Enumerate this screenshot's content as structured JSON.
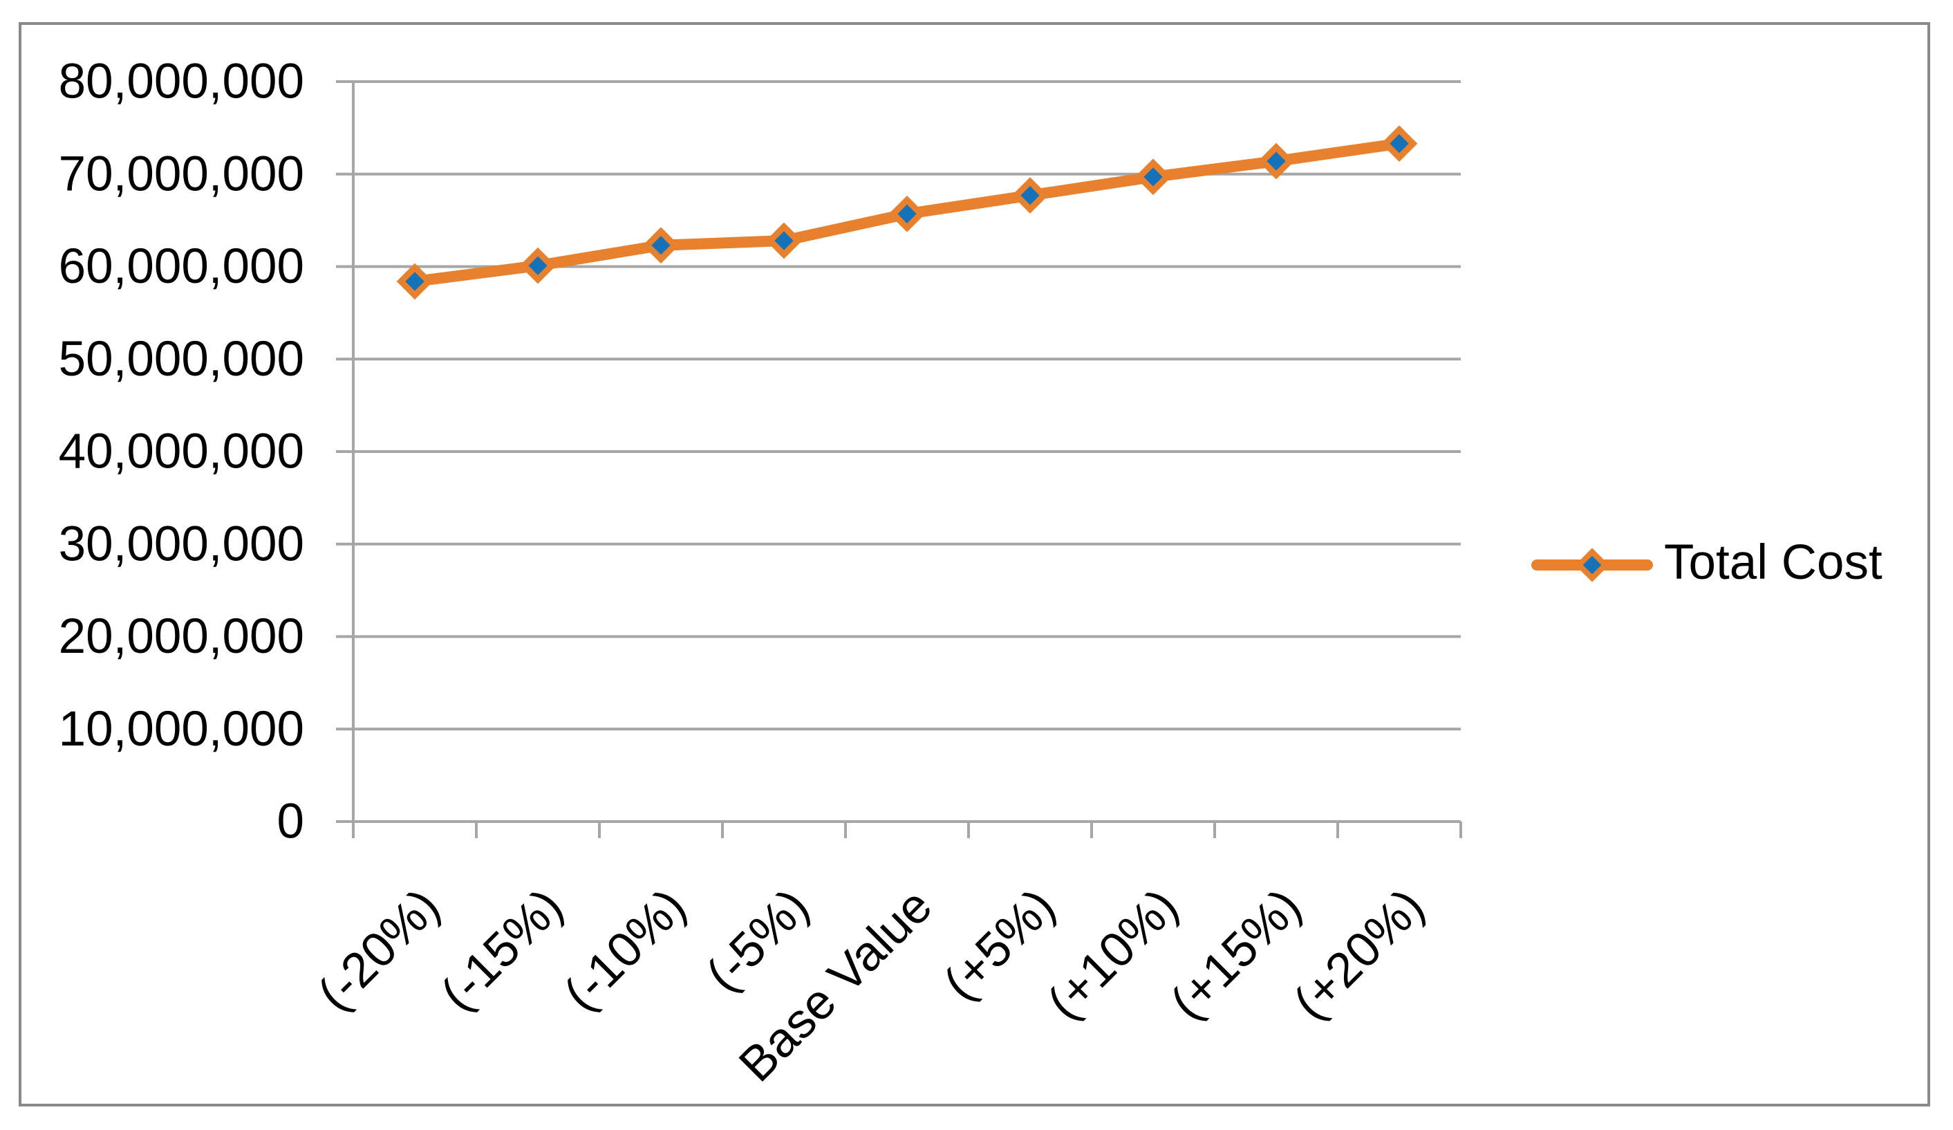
{
  "chart_data": {
    "type": "line",
    "title": "",
    "categories": [
      "(-20%)",
      "(-15%)",
      "(-10%)",
      "(-5%)",
      "Base Value",
      "(+5%)",
      "(+10%)",
      "(+15%)",
      "(+20%)"
    ],
    "series": [
      {
        "name": "Total Cost",
        "values": [
          58400000,
          60100000,
          62300000,
          62800000,
          65700000,
          67700000,
          69700000,
          71400000,
          73300000
        ],
        "line_color": "#E8812D",
        "marker": "diamond",
        "marker_fill": "#1572B9",
        "marker_border_color": "#E8812D"
      }
    ],
    "xlabel": "",
    "ylabel": "",
    "ylim": [
      0,
      80000000
    ],
    "ytick_step": 10000000,
    "ytick_labels_top_to_bottom": [
      "80,000,000",
      "70,000,000",
      "60,000,000",
      "50,000,000",
      "40,000,000",
      "30,000,000",
      "20,000,000",
      "10,000,000",
      "0"
    ],
    "grid": true,
    "x_label_rotation_deg": -45,
    "legend_position": "right-middle"
  },
  "colors": {
    "grid": "#A6A6A6",
    "axis": "#A6A6A6",
    "tick": "#A6A6A6",
    "text": "#000000",
    "frame_border": "#8A8A8A",
    "background": "#FFFFFF"
  }
}
